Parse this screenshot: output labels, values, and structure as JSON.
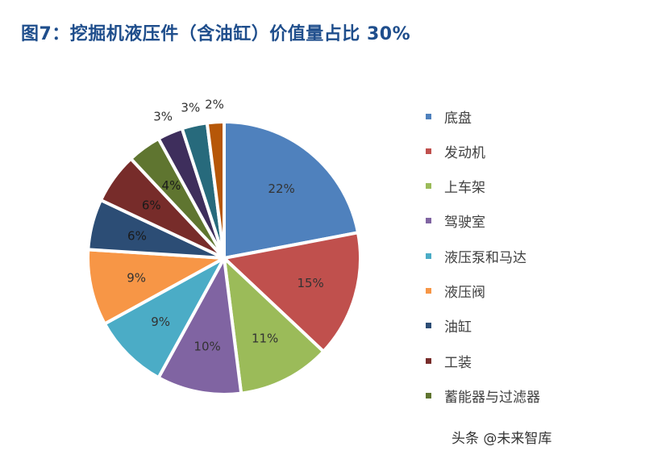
{
  "figure": {
    "title": "图7：挖掘机液压件（含油缸）价值量占比 30%"
  },
  "chart_data": {
    "type": "pie",
    "title": "",
    "categories": [
      "底盘",
      "发动机",
      "上车架",
      "驾驶室",
      "液压泵和马达",
      "液压阀",
      "油缸",
      "工装",
      "蓄能器与过滤器",
      "",
      "",
      ""
    ],
    "values": [
      22,
      15,
      11,
      10,
      9,
      9,
      6,
      6,
      4,
      3,
      3,
      2
    ],
    "labels": [
      "22%",
      "15%",
      "11%",
      "10%",
      "9%",
      "9%",
      "6%",
      "6%",
      "4%",
      "3%",
      "3%",
      "2%"
    ],
    "colors": [
      "#4f81bd",
      "#c0504d",
      "#9bbb59",
      "#8064a2",
      "#4bacc6",
      "#f79646",
      "#2c4d75",
      "#772c2a",
      "#5f7530",
      "#3e2e5c",
      "#276a7c",
      "#b65708"
    ],
    "legend": {
      "position": "right",
      "entries": [
        "底盘",
        "发动机",
        "上车架",
        "驾驶室",
        "液压泵和马达",
        "液压阀",
        "油缸",
        "工装",
        "蓄能器与过滤器"
      ]
    }
  },
  "watermark": "头条 @未来智库"
}
